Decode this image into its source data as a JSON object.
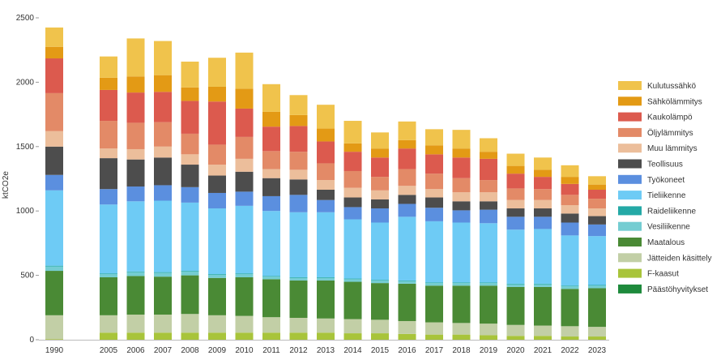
{
  "chart_data": {
    "type": "bar",
    "stacked": true,
    "title": "",
    "xlabel": "",
    "ylabel": "ktCO2e",
    "ylim": [
      0,
      2500
    ],
    "yticks": [
      0,
      500,
      1000,
      1500,
      2000,
      2500
    ],
    "grid": false,
    "legend_position": "right",
    "categories": [
      "1990",
      "2005",
      "2006",
      "2007",
      "2008",
      "2009",
      "2010",
      "2011",
      "2012",
      "2013",
      "2014",
      "2015",
      "2016",
      "2017",
      "2018",
      "2019",
      "2020",
      "2021",
      "2022",
      "2023"
    ],
    "gap_after_index": 0,
    "series": [
      {
        "name": "Päästöhyvitykset",
        "color": "#1e8a3c",
        "values": [
          0,
          0,
          0,
          0,
          0,
          0,
          0,
          0,
          0,
          0,
          0,
          0,
          0,
          0,
          0,
          0,
          0,
          0,
          0,
          0
        ]
      },
      {
        "name": "F-kaasut",
        "color": "#a8c43a",
        "values": [
          5,
          55,
          55,
          55,
          55,
          55,
          55,
          55,
          55,
          55,
          50,
          50,
          45,
          40,
          40,
          35,
          30,
          30,
          25,
          25
        ]
      },
      {
        "name": "Jätteiden käsittely",
        "color": "#c2cfa6",
        "values": [
          185,
          135,
          140,
          140,
          145,
          135,
          130,
          120,
          115,
          110,
          110,
          105,
          100,
          95,
          90,
          90,
          85,
          80,
          80,
          75
        ]
      },
      {
        "name": "Maatalous",
        "color": "#4a8a35",
        "values": [
          345,
          295,
          300,
          295,
          300,
          290,
          300,
          295,
          290,
          295,
          290,
          285,
          290,
          285,
          290,
          295,
          295,
          300,
          290,
          300
        ]
      },
      {
        "name": "Vesiliikenne",
        "color": "#74cdd2",
        "values": [
          35,
          25,
          30,
          30,
          30,
          25,
          25,
          20,
          20,
          20,
          20,
          20,
          20,
          20,
          20,
          20,
          20,
          20,
          20,
          20
        ]
      },
      {
        "name": "Raideliikenne",
        "color": "#24a9a6",
        "values": [
          5,
          5,
          5,
          5,
          5,
          5,
          5,
          5,
          5,
          5,
          5,
          5,
          5,
          5,
          5,
          5,
          5,
          5,
          5,
          5
        ]
      },
      {
        "name": "Tieliikenne",
        "color": "#6ecbf5",
        "values": [
          585,
          535,
          545,
          555,
          530,
          510,
          525,
          505,
          505,
          505,
          460,
          445,
          495,
          475,
          465,
          460,
          420,
          425,
          390,
          380
        ]
      },
      {
        "name": "Työkoneet",
        "color": "#5b8fdf",
        "values": [
          120,
          120,
          115,
          120,
          120,
          120,
          110,
          115,
          135,
          95,
          95,
          110,
          100,
          105,
          95,
          105,
          100,
          95,
          100,
          90
        ]
      },
      {
        "name": "Teollisuus",
        "color": "#4d4d4d",
        "values": [
          220,
          240,
          210,
          215,
          175,
          135,
          155,
          140,
          120,
          80,
          75,
          70,
          70,
          80,
          70,
          65,
          65,
          65,
          70,
          65
        ]
      },
      {
        "name": "Muu lämmitys",
        "color": "#ecbe9b",
        "values": [
          120,
          75,
          80,
          85,
          80,
          85,
          100,
          70,
          75,
          75,
          75,
          70,
          70,
          65,
          70,
          70,
          65,
          65,
          65,
          60
        ]
      },
      {
        "name": "Öljylämmitys",
        "color": "#e38a67",
        "values": [
          295,
          215,
          205,
          190,
          160,
          155,
          170,
          140,
          140,
          130,
          130,
          105,
          130,
          120,
          110,
          95,
          90,
          85,
          80,
          75
        ]
      },
      {
        "name": "Kaukolämpö",
        "color": "#dc5a4e",
        "values": [
          270,
          240,
          235,
          235,
          255,
          335,
          220,
          190,
          200,
          170,
          150,
          150,
          160,
          150,
          160,
          165,
          115,
          95,
          85,
          70
        ]
      },
      {
        "name": "Sähkölämmitys",
        "color": "#e39a15",
        "values": [
          90,
          95,
          125,
          130,
          105,
          115,
          155,
          115,
          85,
          100,
          65,
          70,
          65,
          70,
          70,
          55,
          60,
          55,
          55,
          40
        ]
      },
      {
        "name": "Kulutussähkö",
        "color": "#f0c34c",
        "values": [
          150,
          165,
          295,
          265,
          200,
          225,
          280,
          215,
          155,
          185,
          175,
          125,
          145,
          125,
          145,
          105,
          95,
          95,
          90,
          65
        ]
      }
    ]
  }
}
